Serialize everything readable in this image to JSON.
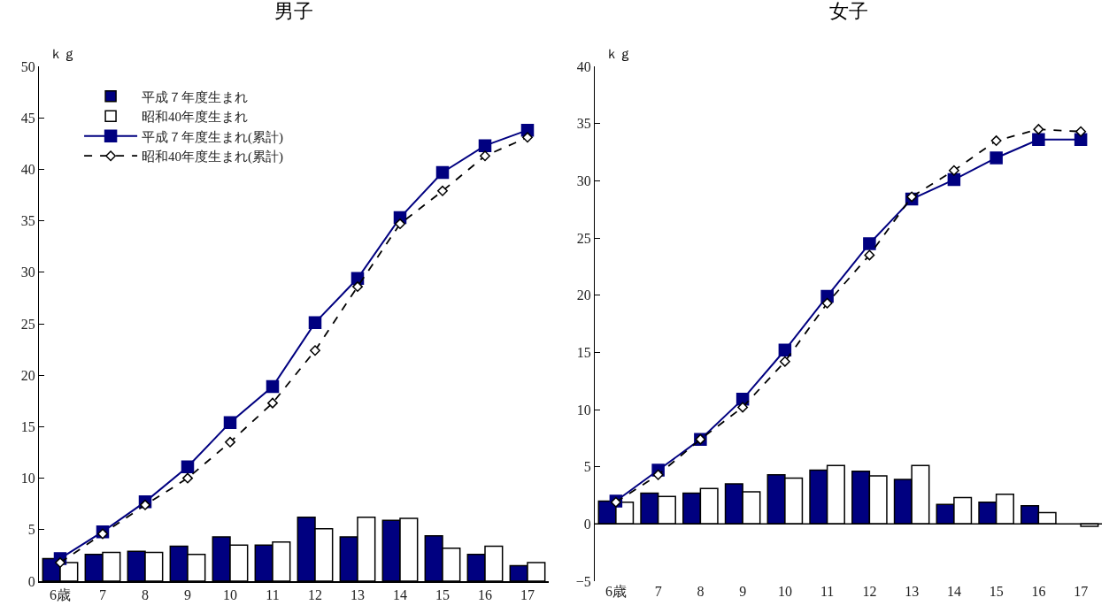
{
  "chart_data": [
    {
      "type": "bar",
      "title": "男子",
      "ylabel": "ｋｇ",
      "categories": [
        "6歳",
        "7",
        "8",
        "9",
        "10",
        "11",
        "12",
        "13",
        "14",
        "15",
        "16",
        "17"
      ],
      "ylim": [
        0,
        50
      ],
      "yticks": [
        0,
        5,
        10,
        15,
        20,
        25,
        30,
        35,
        40,
        45,
        50
      ],
      "legend": "top left",
      "grid": false,
      "series": [
        {
          "name": "平成７年度生まれ",
          "color": "#000080",
          "values": [
            2.2,
            2.6,
            2.9,
            3.4,
            4.3,
            3.5,
            6.2,
            4.3,
            5.9,
            4.4,
            2.6,
            1.5
          ]
        },
        {
          "name": "昭和40年度生まれ",
          "color": "#ffffff",
          "values": [
            1.8,
            2.8,
            2.8,
            2.6,
            3.5,
            3.8,
            5.1,
            6.2,
            6.1,
            3.2,
            3.4,
            1.8
          ]
        },
        {
          "name": "平成７年度生まれ(累計)",
          "type": "line",
          "color": "#000080",
          "marker": "square",
          "line_style": "solid",
          "values": [
            2.2,
            4.8,
            7.7,
            11.1,
            15.4,
            18.9,
            25.1,
            29.4,
            35.3,
            39.7,
            42.3,
            43.8
          ]
        },
        {
          "name": "昭和40年度生まれ(累計)",
          "type": "line",
          "color": "#000000",
          "marker": "diamond",
          "line_style": "dashed",
          "values": [
            1.8,
            4.6,
            7.4,
            10.0,
            13.5,
            17.3,
            22.4,
            28.6,
            34.7,
            37.9,
            41.3,
            43.1
          ]
        }
      ]
    },
    {
      "type": "bar",
      "title": "女子",
      "ylabel": "ｋｇ",
      "categories": [
        "6歳",
        "7",
        "8",
        "9",
        "10",
        "11",
        "12",
        "13",
        "14",
        "15",
        "16",
        "17"
      ],
      "ylim": [
        -5,
        40
      ],
      "yticks": [
        -5,
        0,
        5,
        10,
        15,
        20,
        25,
        30,
        35,
        40
      ],
      "legend": false,
      "grid": false,
      "ref_lines": [
        {
          "axis": "y",
          "value": 0,
          "color": "#000000"
        }
      ],
      "series": [
        {
          "color": "#000080",
          "values": [
            2.0,
            2.7,
            2.7,
            3.5,
            4.3,
            4.7,
            4.6,
            3.9,
            1.7,
            1.9,
            1.6,
            null
          ]
        },
        {
          "color": "#ffffff",
          "values": [
            1.9,
            2.4,
            3.1,
            2.8,
            4.0,
            5.1,
            4.2,
            5.1,
            2.3,
            2.6,
            1.0,
            -0.2
          ]
        },
        {
          "type": "line",
          "color": "#000080",
          "marker": "square",
          "line_style": "solid",
          "values": [
            2.0,
            4.7,
            7.4,
            10.9,
            15.2,
            19.9,
            24.5,
            28.4,
            30.1,
            32.0,
            33.6,
            33.6
          ]
        },
        {
          "type": "line",
          "color": "#000000",
          "marker": "diamond",
          "line_style": "dashed",
          "values": [
            1.9,
            4.3,
            7.4,
            10.2,
            14.2,
            19.3,
            23.5,
            28.6,
            30.9,
            33.5,
            34.5,
            34.3
          ]
        }
      ]
    }
  ]
}
